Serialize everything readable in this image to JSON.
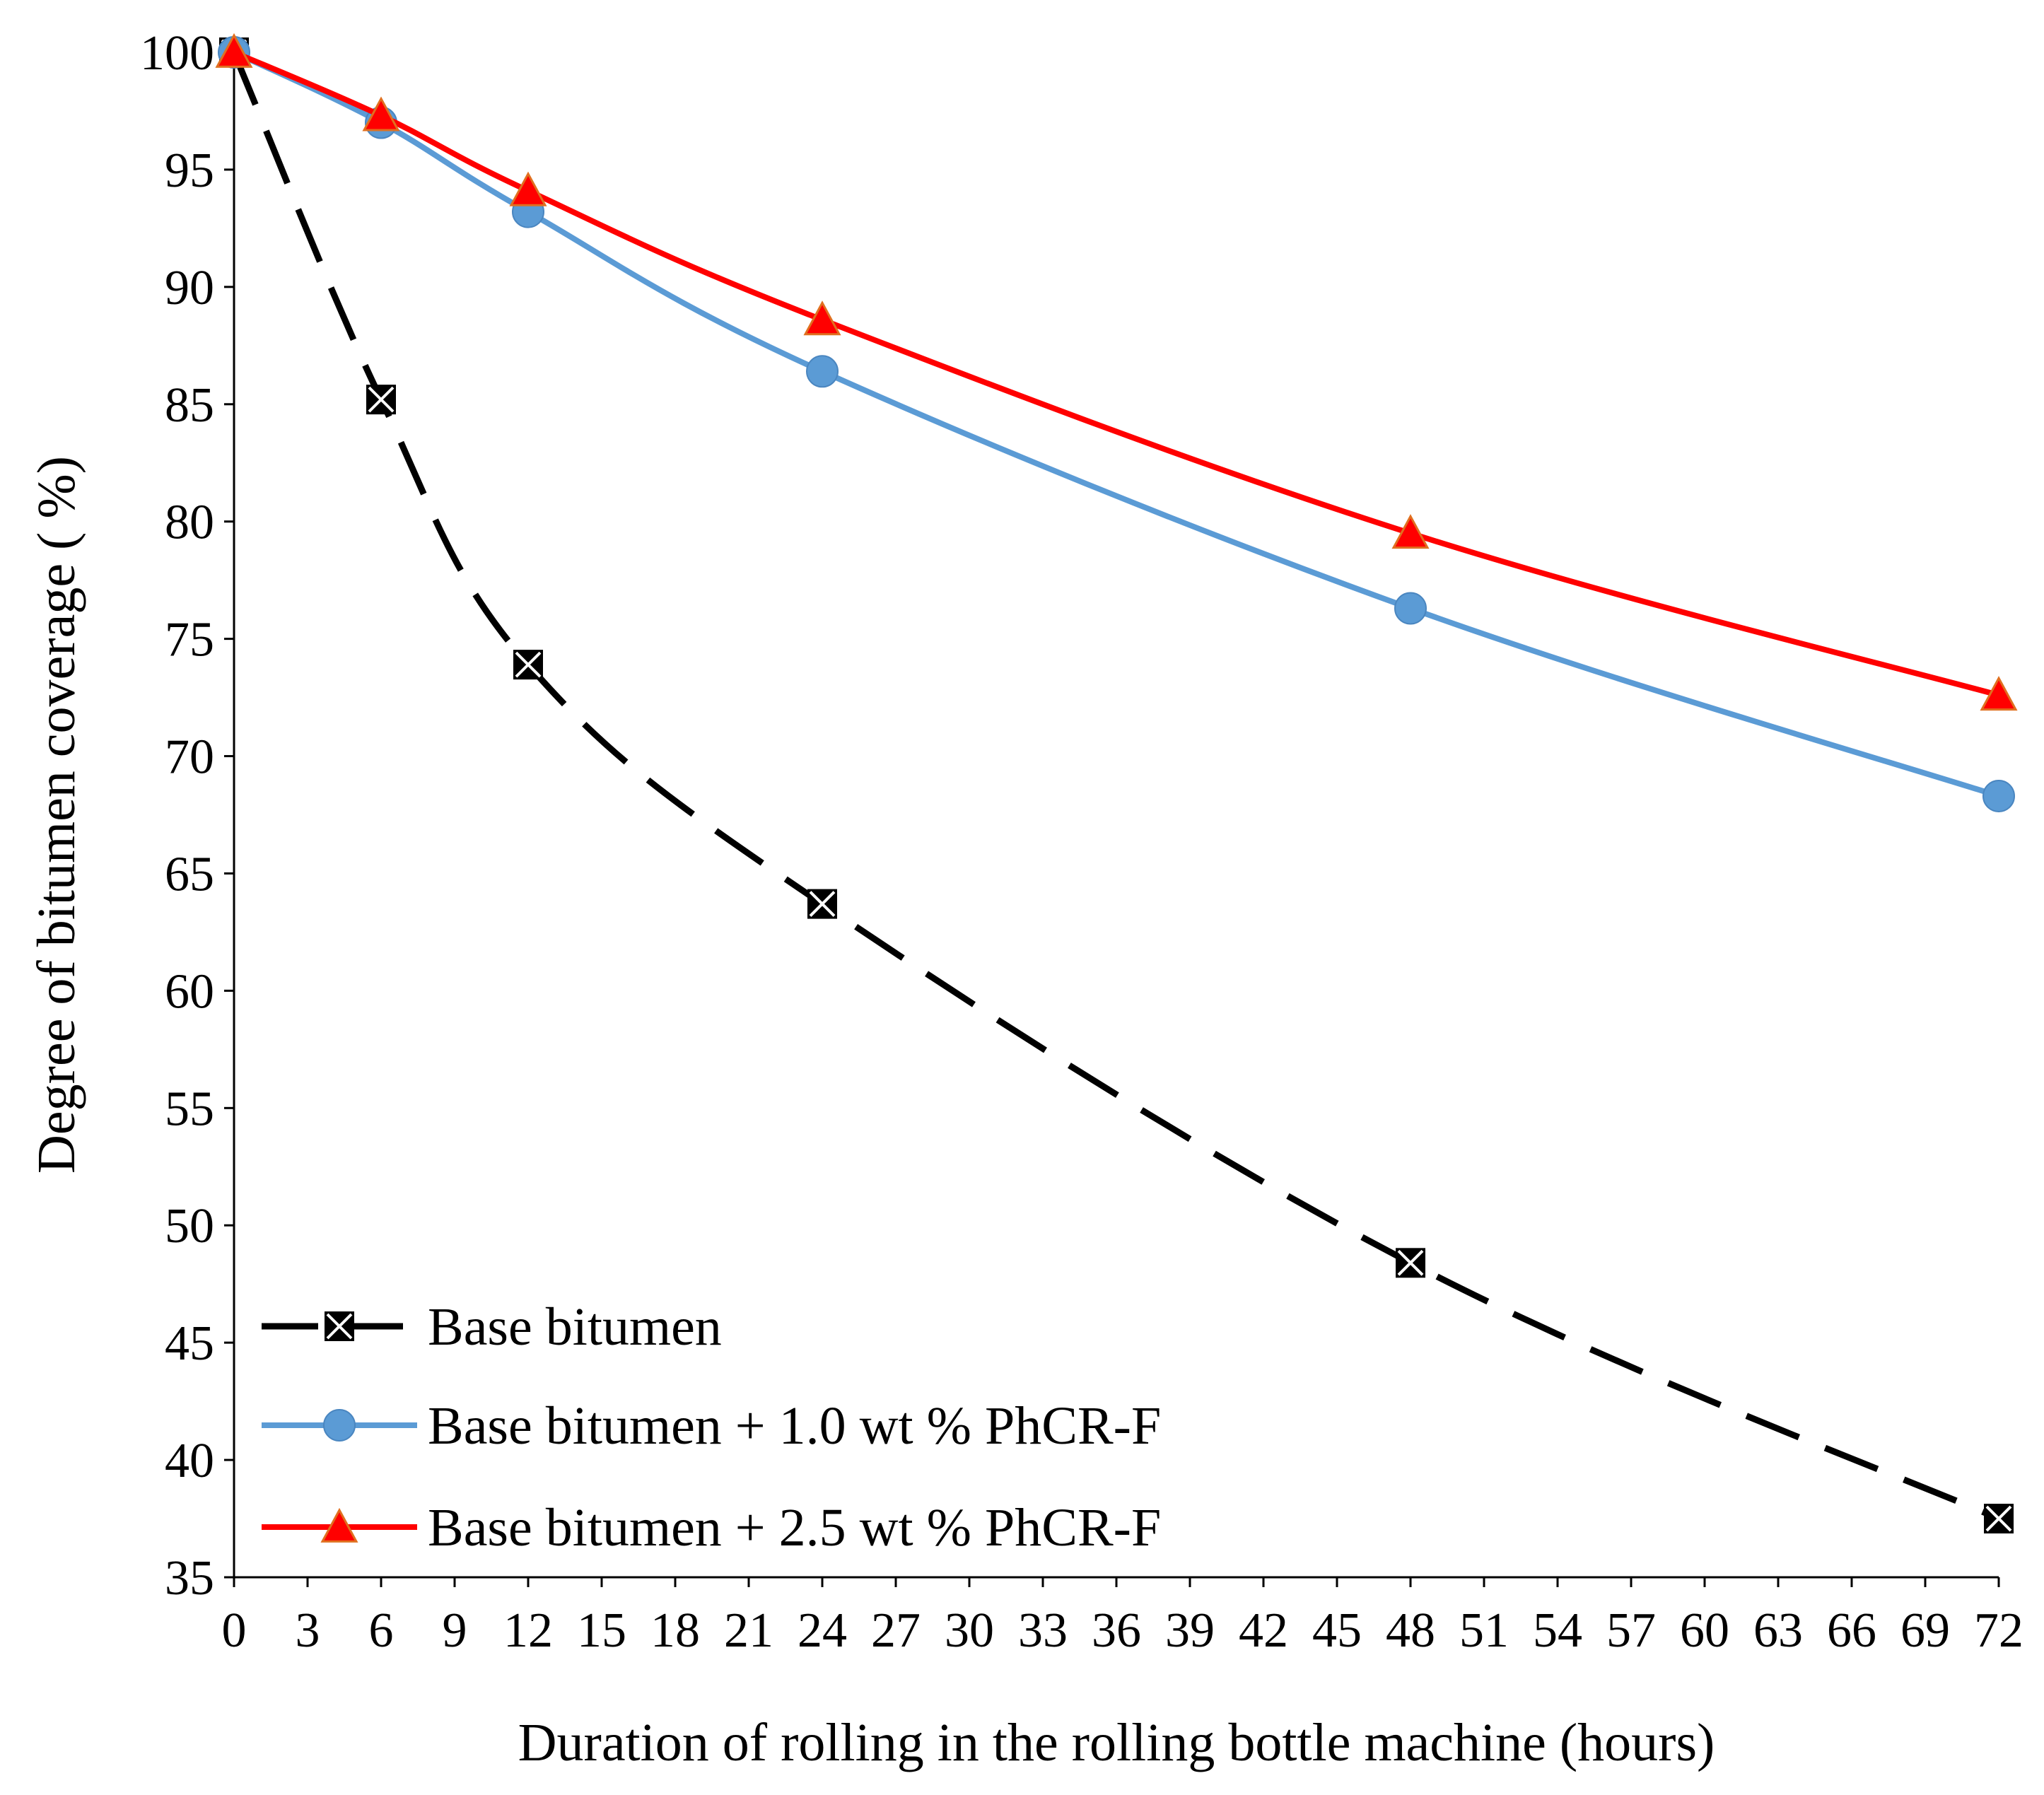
{
  "chart_data": {
    "type": "line",
    "title": "",
    "xlabel": "Duration of rolling  in the rolling  bottle machine  (hours)",
    "ylabel": "Degree of bitumen coverage ( %)",
    "xlim": [
      0,
      72
    ],
    "ylim": [
      35,
      100
    ],
    "x_ticks": [
      "0",
      "3",
      "6",
      "9",
      "12",
      "15",
      "18",
      "21",
      "24",
      "27",
      "30",
      "33",
      "36",
      "39",
      "42",
      "45",
      "48",
      "51",
      "54",
      "57",
      "60",
      "63",
      "66",
      "69",
      "72"
    ],
    "y_ticks": [
      "35",
      "40",
      "45",
      "50",
      "55",
      "60",
      "65",
      "70",
      "75",
      "80",
      "85",
      "90",
      "95",
      "100"
    ],
    "grid": false,
    "legend_position": "bottom-left",
    "x": [
      0,
      6,
      12,
      24,
      48,
      72
    ],
    "series": [
      {
        "name": "Base bitumen",
        "values": [
          100,
          85.2,
          73.9,
          63.7,
          48.4,
          37.5
        ],
        "color": "#000000",
        "marker": "square-x",
        "line_style": "dashed"
      },
      {
        "name": "Base bitumen + 1.0 wt % PhCR-F",
        "values": [
          100,
          97.0,
          93.2,
          86.4,
          76.3,
          68.3
        ],
        "color": "#5b9bd5",
        "marker": "circle",
        "line_style": "solid"
      },
      {
        "name": "Base bitumen + 2.5 wt % PhCR-F",
        "values": [
          100,
          97.3,
          94.1,
          88.6,
          79.5,
          72.6
        ],
        "color": "#ff0000",
        "marker": "triangle",
        "line_style": "solid"
      }
    ]
  }
}
